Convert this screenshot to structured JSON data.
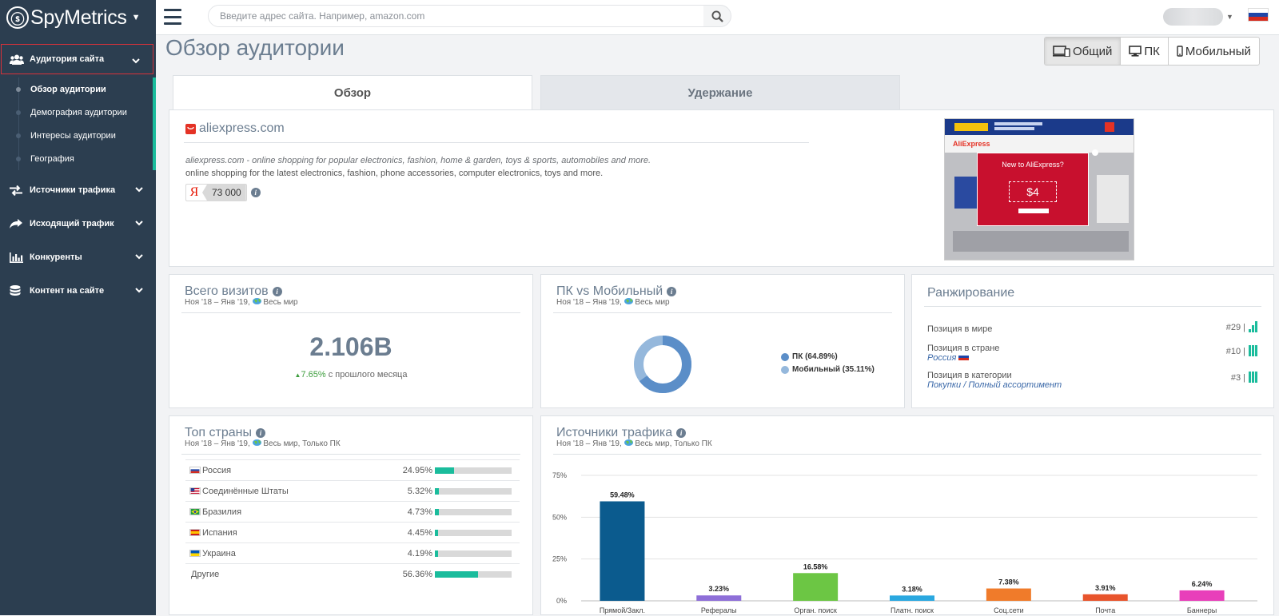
{
  "app": {
    "name": "SpyMetrics"
  },
  "search": {
    "placeholder": "Введите адрес сайта. Например, amazon.com"
  },
  "sidebar": {
    "sections": [
      {
        "label": "Аудитория сайта",
        "icon": "users-icon"
      },
      {
        "label": "Источники трафика",
        "icon": "exchange-arrows-icon"
      },
      {
        "label": "Исходящий трафик",
        "icon": "share-arrow-icon"
      },
      {
        "label": "Конкуренты",
        "icon": "bar-chart-icon"
      },
      {
        "label": "Контент на сайте",
        "icon": "database-icon"
      }
    ],
    "audience_items": [
      "Обзор аудитории",
      "Демография аудитории",
      "Интересы аудитории",
      "География"
    ]
  },
  "page": {
    "title": "Обзор аудитории"
  },
  "view_tabs": [
    "Общий",
    "ПК",
    "Мобильный"
  ],
  "tabs": [
    "Обзор",
    "Удержание"
  ],
  "site": {
    "domain": "aliexpress.com",
    "description_meta": "aliexpress.com - online shopping for popular electronics, fashion, home & garden, toys & sports, automobiles and more.",
    "description": "online shopping for the latest electronics, fashion, phone accessories, computer electronics, toys and more.",
    "yandex_letter": "Я",
    "yandex_value": "73 000",
    "screenshot": {
      "banner_title": "New to AliExpress?",
      "banner_price": "$4",
      "logo": "AliExpress"
    }
  },
  "visits": {
    "title": "Всего визитов",
    "subtitle_period": "Ноя '18 – Янв '19,",
    "subtitle_region": "Весь мир",
    "value": "2.106B",
    "change_pct": "7.65%",
    "change_text": " с прошлого месяца"
  },
  "pc_vs_mobile": {
    "title": "ПК vs Мобильный",
    "subtitle_period": "Ноя '18 – Янв '19,",
    "subtitle_region": "Весь мир",
    "pc_label": "ПК (64.89%)",
    "mobile_label": "Мобильный (35.11%)",
    "pc_share": 64.89,
    "mobile_share": 35.11,
    "colors": {
      "pc": "#5b8ec8",
      "mobile": "#95b8dc"
    }
  },
  "ranking": {
    "title": "Ранжирование",
    "rows": [
      {
        "label": "Позиция в мире",
        "sub": "",
        "value": "#29 |"
      },
      {
        "label": "Позиция в стране",
        "sub": "Россия",
        "value": "#10 |"
      },
      {
        "label": "Позиция в категории",
        "sub": "Покупки / Полный ассортимент",
        "value": "#3 |"
      }
    ]
  },
  "top_countries": {
    "title": "Топ страны",
    "subtitle_period": "Ноя '18 – Янв '19,",
    "subtitle_region": "Весь мир, Только ПК",
    "rows": [
      {
        "name": "Россия",
        "pct": "24.95%",
        "share": 24.95,
        "flag": "ru"
      },
      {
        "name": "Соединённые Штаты",
        "pct": "5.32%",
        "share": 5.32,
        "flag": "us"
      },
      {
        "name": "Бразилия",
        "pct": "4.73%",
        "share": 4.73,
        "flag": "br"
      },
      {
        "name": "Испания",
        "pct": "4.45%",
        "share": 4.45,
        "flag": "es"
      },
      {
        "name": "Украина",
        "pct": "4.19%",
        "share": 4.19,
        "flag": "ua"
      },
      {
        "name": "Другие",
        "pct": "56.36%",
        "share": 56.36,
        "flag": ""
      }
    ]
  },
  "traffic_sources": {
    "title": "Источники трафика",
    "subtitle_period": "Ноя '18 – Янв '19,",
    "subtitle_region": "Весь мир, Только ПК"
  },
  "chart_data": {
    "type": "bar",
    "categories": [
      "Прямой/Закл.",
      "Рефералы",
      "Орган. поиск",
      "Платн. поиск",
      "Соц.сети",
      "Почта",
      "Баннеры"
    ],
    "values": [
      59.48,
      3.23,
      16.58,
      3.18,
      7.38,
      3.91,
      6.24
    ],
    "labels": [
      "59.48%",
      "3.23%",
      "16.58%",
      "3.18%",
      "7.38%",
      "3.91%",
      "6.24%"
    ],
    "colors": [
      "#0b5b8e",
      "#8e6fd8",
      "#6cc644",
      "#2aa8e0",
      "#f07b2a",
      "#e8542c",
      "#e83fba"
    ],
    "yticks": [
      "0%",
      "25%",
      "50%",
      "75%"
    ],
    "ylim": [
      0,
      75
    ],
    "grid": true
  }
}
